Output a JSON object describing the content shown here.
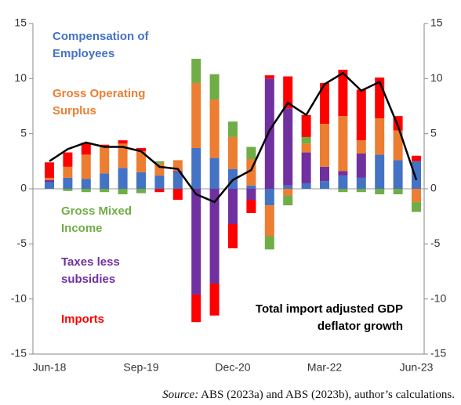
{
  "chart_data": {
    "type": "bar",
    "categories": [
      "Jun-18",
      null,
      null,
      null,
      null,
      "Sep-19",
      null,
      null,
      null,
      null,
      "Dec-20",
      null,
      null,
      null,
      null,
      "Mar-22",
      null,
      null,
      null,
      null,
      "Jun-23"
    ],
    "series": [
      {
        "name": "Compensation of Employees",
        "color": "#4472c4",
        "values": [
          0.6,
          1.0,
          0.9,
          1.4,
          1.9,
          1.5,
          1.2,
          1.5,
          3.7,
          2.8,
          1.8,
          0.3,
          -1.5,
          0.3,
          0.5,
          0.7,
          1.2,
          1.0,
          3.1,
          2.6,
          2.5
        ]
      },
      {
        "name": "Gross Operating Surplus",
        "color": "#ed7d31",
        "values": [
          0.2,
          1.0,
          2.2,
          2.4,
          2.2,
          1.9,
          1.1,
          1.0,
          5.9,
          5.3,
          2.9,
          2.4,
          -2.8,
          -0.6,
          0.8,
          3.9,
          5.0,
          1.2,
          3.3,
          2.7,
          -1.2
        ]
      },
      {
        "name": "Gross Mixed Income",
        "color": "#70ad47",
        "values": [
          0,
          -0.2,
          -0.3,
          -0.3,
          -0.5,
          -0.4,
          0.2,
          0,
          2.2,
          2.3,
          1.4,
          1.1,
          -1.2,
          -0.9,
          0.6,
          0,
          -0.3,
          -0.3,
          -0.5,
          -0.5,
          -0.9
        ]
      },
      {
        "name": "Taxes less subsidies",
        "color": "#7030a0",
        "values": [
          0.2,
          0,
          0,
          0,
          0,
          0,
          0,
          0.1,
          -9.6,
          -8.6,
          -3.2,
          -1.0,
          10.0,
          7.0,
          2.8,
          1.3,
          0.4,
          2.2,
          0,
          0,
          0
        ]
      },
      {
        "name": "Imports",
        "color": "#ff0000",
        "values": [
          1.4,
          1.3,
          1.1,
          0.2,
          0.3,
          0.3,
          -0.3,
          -1.0,
          -2.5,
          -2.9,
          -2.2,
          -1.2,
          0.3,
          2.9,
          2.0,
          3.7,
          4.2,
          4.6,
          3.7,
          1.3,
          0.5
        ]
      },
      {
        "name": "Total import adjusted GDP deflator growth",
        "type": "line",
        "color": "#000000",
        "values": [
          2.5,
          3.6,
          4.2,
          3.8,
          3.8,
          3.4,
          2.0,
          1.8,
          -0.5,
          -1.2,
          0.8,
          1.7,
          5.3,
          7.8,
          6.7,
          9.5,
          10.5,
          8.9,
          9.7,
          5.7,
          0.8
        ]
      }
    ],
    "ylim": [
      -15,
      15
    ],
    "yticks": [
      -15,
      -10,
      -5,
      0,
      5,
      10,
      15
    ],
    "y2lim": [
      -15,
      15
    ],
    "y2ticks": [
      -15,
      -10,
      -5,
      0,
      5,
      10,
      15
    ],
    "source_label": "Source:",
    "source": "ABS (2023a) and ABS (2023b), author’s calculations."
  }
}
